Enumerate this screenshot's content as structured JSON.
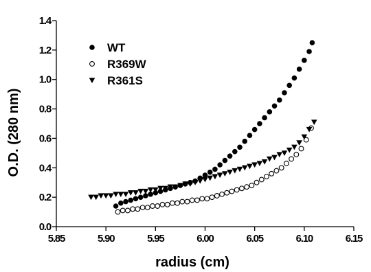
{
  "chart_data": {
    "type": "scatter",
    "xlabel": "radius (cm)",
    "ylabel": "O.D.  (280 nm)",
    "xlim": [
      5.85,
      6.15
    ],
    "ylim": [
      0.0,
      1.4
    ],
    "x_ticks": [
      "5.85",
      "5.90",
      "5.95",
      "6.00",
      "6.05",
      "6.10",
      "6.15"
    ],
    "y_ticks": [
      "0.0",
      "0.2",
      "0.4",
      "0.6",
      "0.8",
      "1.0",
      "1.2",
      "1.4"
    ],
    "grid": false,
    "legend_position": "top-left",
    "series": [
      {
        "name": "WT",
        "marker": "filled-circle",
        "x": [
          5.91,
          5.915,
          5.92,
          5.925,
          5.93,
          5.935,
          5.94,
          5.945,
          5.95,
          5.955,
          5.96,
          5.965,
          5.97,
          5.975,
          5.98,
          5.985,
          5.99,
          5.995,
          6.0,
          6.005,
          6.01,
          6.015,
          6.02,
          6.025,
          6.03,
          6.035,
          6.04,
          6.045,
          6.05,
          6.055,
          6.06,
          6.065,
          6.07,
          6.075,
          6.08,
          6.085,
          6.09,
          6.095,
          6.1,
          6.105,
          6.108
        ],
        "y": [
          0.14,
          0.16,
          0.17,
          0.18,
          0.19,
          0.2,
          0.21,
          0.22,
          0.23,
          0.24,
          0.25,
          0.26,
          0.27,
          0.28,
          0.29,
          0.3,
          0.31,
          0.33,
          0.35,
          0.37,
          0.39,
          0.42,
          0.45,
          0.48,
          0.51,
          0.54,
          0.58,
          0.62,
          0.66,
          0.7,
          0.74,
          0.78,
          0.82,
          0.86,
          0.91,
          0.96,
          1.01,
          1.07,
          1.13,
          1.19,
          1.25
        ]
      },
      {
        "name": "R369W",
        "marker": "open-circle",
        "x": [
          5.912,
          5.917,
          5.922,
          5.927,
          5.932,
          5.937,
          5.942,
          5.947,
          5.952,
          5.957,
          5.962,
          5.967,
          5.972,
          5.977,
          5.982,
          5.987,
          5.992,
          5.997,
          6.002,
          6.007,
          6.012,
          6.017,
          6.022,
          6.027,
          6.032,
          6.037,
          6.042,
          6.047,
          6.052,
          6.057,
          6.062,
          6.067,
          6.072,
          6.077,
          6.082,
          6.087,
          6.092,
          6.097,
          6.102,
          6.107
        ],
        "y": [
          0.1,
          0.11,
          0.11,
          0.12,
          0.12,
          0.13,
          0.13,
          0.14,
          0.14,
          0.15,
          0.15,
          0.16,
          0.16,
          0.17,
          0.17,
          0.18,
          0.18,
          0.19,
          0.19,
          0.2,
          0.21,
          0.22,
          0.23,
          0.24,
          0.25,
          0.26,
          0.27,
          0.28,
          0.3,
          0.32,
          0.34,
          0.36,
          0.38,
          0.4,
          0.43,
          0.46,
          0.49,
          0.53,
          0.59,
          0.67
        ]
      },
      {
        "name": "R361S",
        "marker": "filled-triangle-down",
        "x": [
          5.885,
          5.89,
          5.895,
          5.9,
          5.905,
          5.91,
          5.915,
          5.92,
          5.925,
          5.93,
          5.935,
          5.94,
          5.945,
          5.95,
          5.955,
          5.96,
          5.965,
          5.97,
          5.975,
          5.98,
          5.985,
          5.99,
          5.995,
          6.0,
          6.005,
          6.01,
          6.015,
          6.02,
          6.025,
          6.03,
          6.035,
          6.04,
          6.045,
          6.05,
          6.055,
          6.06,
          6.065,
          6.07,
          6.075,
          6.08,
          6.085,
          6.09,
          6.095,
          6.1,
          6.105,
          6.11
        ],
        "y": [
          0.2,
          0.2,
          0.21,
          0.21,
          0.21,
          0.22,
          0.22,
          0.22,
          0.23,
          0.23,
          0.24,
          0.24,
          0.25,
          0.25,
          0.26,
          0.26,
          0.27,
          0.27,
          0.28,
          0.29,
          0.29,
          0.3,
          0.31,
          0.32,
          0.33,
          0.34,
          0.35,
          0.36,
          0.37,
          0.38,
          0.39,
          0.4,
          0.41,
          0.42,
          0.43,
          0.44,
          0.46,
          0.47,
          0.49,
          0.5,
          0.52,
          0.54,
          0.57,
          0.61,
          0.66,
          0.71
        ]
      }
    ]
  }
}
